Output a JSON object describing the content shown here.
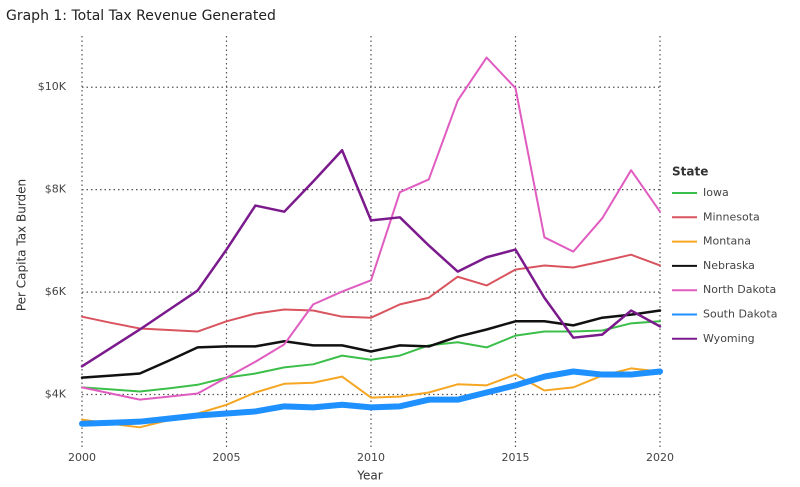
{
  "chart_data": {
    "type": "line",
    "title": "Graph 1: Total Tax Revenue Generated",
    "x_label": "Year",
    "y_label": "Per Capita Tax Burden",
    "legend_title": "State",
    "x": [
      2000,
      2001,
      2002,
      2003,
      2004,
      2005,
      2006,
      2007,
      2008,
      2009,
      2010,
      2011,
      2012,
      2013,
      2014,
      2015,
      2016,
      2017,
      2018,
      2019,
      2020
    ],
    "xlim": [
      2000,
      2020
    ],
    "xticks": [
      2000,
      2005,
      2010,
      2015,
      2020
    ],
    "ylim": [
      2800,
      11000
    ],
    "yticks": [
      {
        "value": 4000,
        "label": "$4K"
      },
      {
        "value": 6000,
        "label": "$6K"
      },
      {
        "value": 8000,
        "label": "$8K"
      },
      {
        "value": 10000,
        "label": "$10K"
      }
    ],
    "grid": true,
    "legend": "right",
    "series": [
      {
        "name": "Iowa",
        "color": "#3cbf4a",
        "width": 2,
        "values": [
          4140,
          4100,
          4060,
          4120,
          4190,
          4330,
          4410,
          4530,
          4590,
          4760,
          4680,
          4760,
          4960,
          5020,
          4920,
          5150,
          5230,
          5230,
          5250,
          5390,
          5430
        ]
      },
      {
        "name": "Minnesota",
        "color": "#d9545f",
        "width": 2,
        "values": [
          5520,
          5400,
          5290,
          5260,
          5230,
          5430,
          5580,
          5660,
          5640,
          5520,
          5500,
          5760,
          5890,
          6300,
          6130,
          6440,
          6520,
          6480,
          6600,
          6730,
          6520
        ]
      },
      {
        "name": "Montana",
        "color": "#f5a623",
        "width": 2,
        "values": [
          3510,
          3430,
          3360,
          3500,
          3630,
          3800,
          4040,
          4210,
          4230,
          4350,
          3940,
          3960,
          4040,
          4200,
          4180,
          4390,
          4080,
          4140,
          4370,
          4510,
          4450
        ]
      },
      {
        "name": "Nebraska",
        "color": "#111111",
        "width": 2.5,
        "values": [
          4330,
          4370,
          4410,
          4660,
          4920,
          4940,
          4940,
          5040,
          4960,
          4960,
          4840,
          4960,
          4940,
          5130,
          5270,
          5430,
          5430,
          5350,
          5500,
          5560,
          5640
        ]
      },
      {
        "name": "North Dakota",
        "color": "#e05cc0",
        "width": 2,
        "values": [
          4140,
          4020,
          3900,
          3960,
          4020,
          4330,
          4640,
          4980,
          5760,
          6010,
          6230,
          7950,
          8200,
          9740,
          10580,
          9980,
          7070,
          6790,
          7440,
          8380,
          7570
        ]
      },
      {
        "name": "South Dakota",
        "color": "#1e90ff",
        "width": 6,
        "values": [
          3430,
          3450,
          3470,
          3530,
          3590,
          3630,
          3670,
          3770,
          3750,
          3800,
          3750,
          3770,
          3900,
          3900,
          4040,
          4180,
          4350,
          4450,
          4390,
          4390,
          4450
        ]
      },
      {
        "name": "Wyoming",
        "color": "#7b1a8c",
        "width": 2.5,
        "values": [
          4550,
          4910,
          5270,
          5650,
          6030,
          6830,
          7690,
          7570,
          8160,
          8770,
          7400,
          7460,
          6910,
          6400,
          6680,
          6830,
          5890,
          5110,
          5170,
          5640,
          5330
        ]
      }
    ]
  }
}
